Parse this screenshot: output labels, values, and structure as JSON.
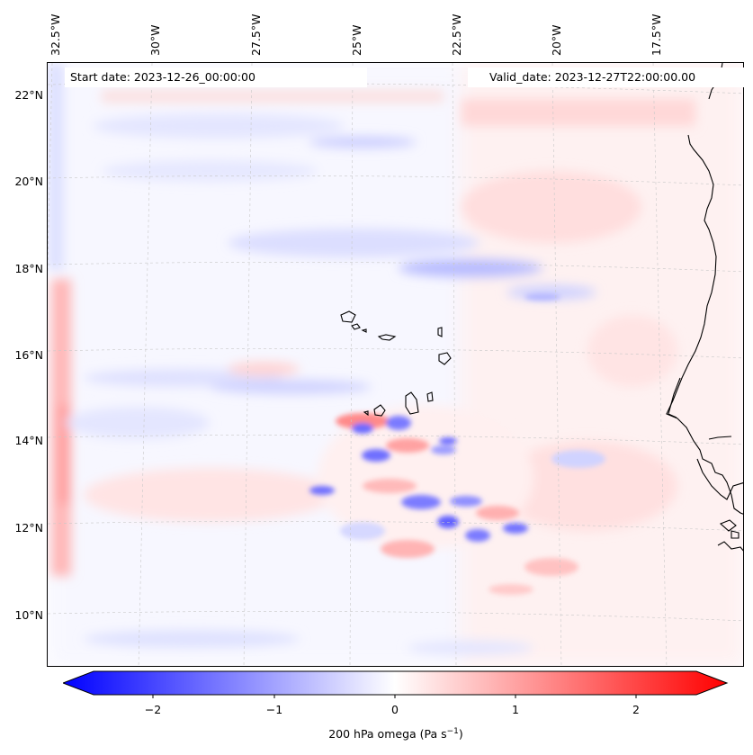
{
  "map": {
    "start_date": "Start date: 2023-12-26_00:00:00",
    "valid_date": "Valid_date: 2023-12-27T22:00:00.00",
    "lat_labels": [
      "22°N",
      "20°N",
      "18°N",
      "16°N",
      "14°N",
      "12°N",
      "10°N"
    ],
    "lon_labels": [
      "32.5°W",
      "30°W",
      "27.5°W",
      "25°W",
      "22.5°W",
      "20°W",
      "17.5°W"
    ]
  },
  "colorbar": {
    "label_prefix": "200 hPa omega (Pa s",
    "label_sup": "−1",
    "label_suffix": ")",
    "ticks": [
      "−2",
      "−1",
      "0",
      "1",
      "2"
    ],
    "min_color": "#0000ff",
    "mid_color": "#ffffff",
    "max_color": "#ff0000"
  }
}
